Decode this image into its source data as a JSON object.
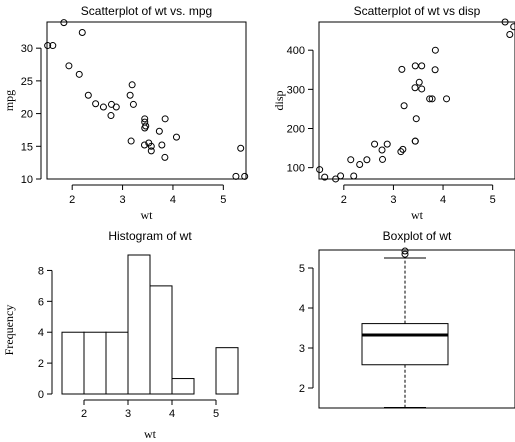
{
  "chart_data": [
    {
      "type": "scatter",
      "title": "Scatterplot of wt vs. mpg",
      "xlabel": "wt",
      "ylabel": "mpg",
      "xlim": [
        1.5,
        5.45
      ],
      "ylim": [
        10,
        34
      ],
      "xticks": [
        2,
        3,
        4,
        5
      ],
      "yticks": [
        10,
        15,
        20,
        25,
        30
      ],
      "x": [
        2.62,
        2.875,
        2.32,
        3.215,
        3.44,
        3.46,
        3.57,
        3.19,
        3.15,
        3.44,
        3.44,
        4.07,
        3.73,
        3.78,
        5.25,
        5.424,
        5.345,
        2.2,
        1.615,
        1.835,
        2.465,
        3.52,
        3.435,
        3.84,
        3.845,
        1.935,
        2.14,
        1.513,
        3.17,
        2.77,
        3.57,
        2.78
      ],
      "y": [
        21.0,
        21.0,
        22.8,
        21.4,
        18.7,
        18.1,
        14.3,
        24.4,
        22.8,
        19.2,
        17.8,
        16.4,
        17.3,
        15.2,
        10.4,
        10.4,
        14.7,
        32.4,
        30.4,
        33.9,
        21.5,
        15.5,
        15.2,
        13.3,
        19.2,
        27.3,
        26.0,
        30.4,
        15.8,
        19.7,
        15.0,
        21.4
      ]
    },
    {
      "type": "scatter",
      "title": "Scatterplot of wt vs disp",
      "xlabel": "wt",
      "ylabel": "disp",
      "xlim": [
        1.5,
        5.45
      ],
      "ylim": [
        71,
        472
      ],
      "xticks": [
        2,
        3,
        4,
        5
      ],
      "yticks": [
        100,
        200,
        300,
        400
      ],
      "x": [
        2.62,
        2.875,
        2.32,
        3.215,
        3.44,
        3.46,
        3.57,
        3.19,
        3.15,
        3.44,
        3.44,
        4.07,
        3.73,
        3.78,
        5.25,
        5.424,
        5.345,
        2.2,
        1.615,
        1.835,
        2.465,
        3.52,
        3.435,
        3.84,
        3.845,
        1.935,
        2.14,
        1.513,
        3.17,
        2.77,
        3.57,
        2.78
      ],
      "y": [
        160,
        160,
        108,
        258,
        360,
        225,
        360,
        146.7,
        140.8,
        167.6,
        167.6,
        275.8,
        275.8,
        275.8,
        472,
        460,
        440,
        78.7,
        75.7,
        71.1,
        120.1,
        318,
        304,
        350,
        400,
        79,
        120.3,
        95.1,
        351,
        145,
        301,
        121
      ]
    },
    {
      "type": "bar",
      "title": "Histogram of wt",
      "xlabel": "wt",
      "ylabel": "Frequency",
      "bin_edges": [
        1.5,
        2.0,
        2.5,
        3.0,
        3.5,
        4.0,
        4.5,
        5.0,
        5.5
      ],
      "values": [
        4,
        4,
        4,
        9,
        7,
        1,
        0,
        3
      ],
      "xticks": [
        2,
        3,
        4,
        5
      ],
      "yticks": [
        0,
        2,
        4,
        6,
        8
      ],
      "ylim": [
        0,
        9
      ]
    },
    {
      "type": "box",
      "title": "Boxplot of wt",
      "ylim": [
        1.5,
        5.45
      ],
      "yticks": [
        2,
        3,
        4,
        5
      ],
      "min": 1.513,
      "q1": 2.5812,
      "median": 3.325,
      "q3": 3.61,
      "whisker_high": 5.25,
      "outliers": [
        5.345,
        5.424
      ]
    }
  ]
}
